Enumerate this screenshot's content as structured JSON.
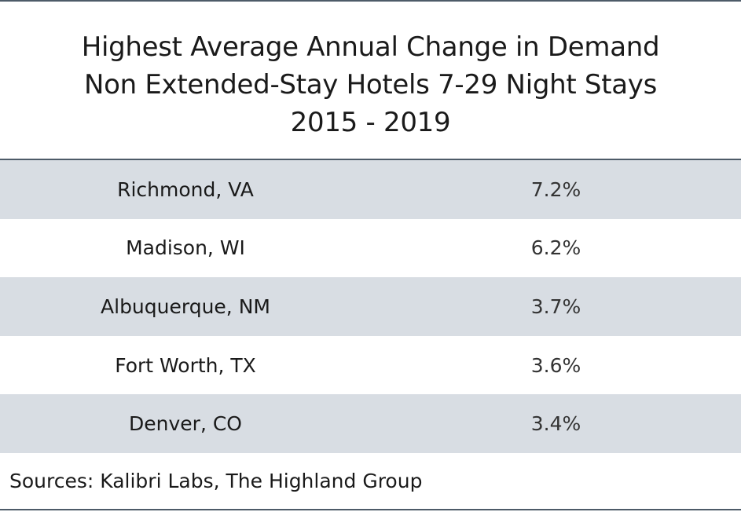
{
  "title": {
    "lines": [
      "Highest Average Annual Change in Demand",
      "Non Extended-Stay Hotels 7-29 Night Stays",
      "2015 - 2019"
    ]
  },
  "table": {
    "rows": [
      [
        "Richmond, VA",
        "7.2%"
      ],
      [
        "Madison, WI",
        "6.2%"
      ],
      [
        "Albuquerque, NM",
        "3.7%"
      ],
      [
        "Fort Worth, TX",
        "3.6%"
      ],
      [
        "Denver, CO",
        "3.4%"
      ]
    ]
  },
  "source": "Sources: Kalibri Labs, The Highland Group"
}
